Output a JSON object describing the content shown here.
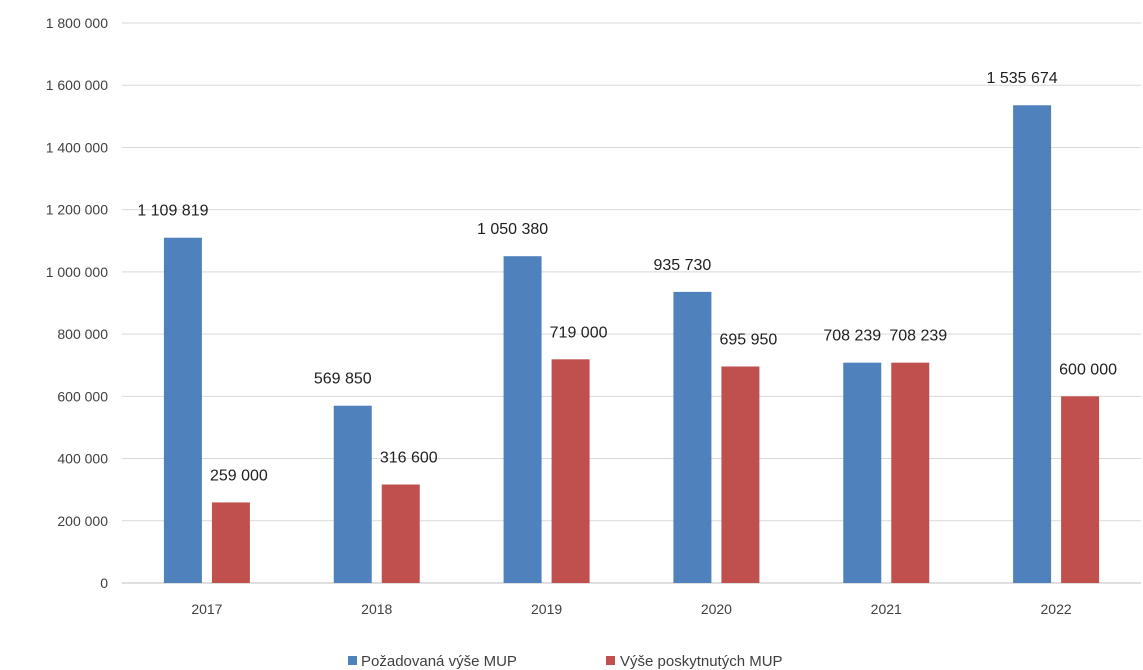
{
  "chart_data": {
    "type": "bar",
    "categories": [
      "2017",
      "2018",
      "2019",
      "2020",
      "2021",
      "2022"
    ],
    "series": [
      {
        "name": "Požadovaná výše MUP",
        "color": "#4f81bd",
        "values": [
          1109819,
          569850,
          1050380,
          935730,
          708239,
          1535674
        ],
        "labels": [
          "1 109 819",
          "569 850",
          "1 050 380",
          "935 730",
          "708 239",
          "1 535 674"
        ]
      },
      {
        "name": "Výše poskytnutých MUP",
        "color": "#c0504d",
        "values": [
          259000,
          316600,
          719000,
          695950,
          708239,
          600000
        ],
        "labels": [
          "259 000",
          "316 600",
          "719 000",
          "695 950",
          "708 239",
          "600 000"
        ]
      }
    ],
    "ylim": [
      0,
      1800000
    ],
    "yticks": [
      0,
      200000,
      400000,
      600000,
      800000,
      1000000,
      1200000,
      1400000,
      1600000,
      1800000
    ],
    "ytick_labels": [
      "0",
      "200 000",
      "400 000",
      "600 000",
      "800 000",
      "1 000 000",
      "1 200 000",
      "1 400 000",
      "1 600 000",
      "1 800 000"
    ],
    "grid": true,
    "legend_position": "bottom",
    "title": "",
    "xlabel": "",
    "ylabel": ""
  }
}
